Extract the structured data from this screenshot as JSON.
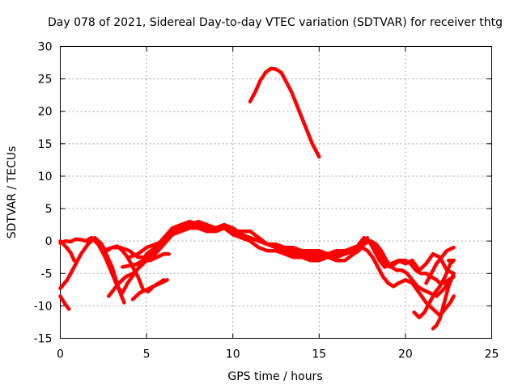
{
  "chart_data": {
    "type": "line",
    "title": "Day 078 of 2021, Sidereal Day-to-day VTEC variation (SDTVAR) for receiver thtg",
    "xlabel": "GPS time / hours",
    "ylabel": "SDTVAR / TECUs",
    "xlim": [
      0,
      25
    ],
    "ylim": [
      -15,
      30
    ],
    "xticks": [
      0,
      5,
      10,
      15,
      20,
      25
    ],
    "yticks": [
      -15,
      -10,
      -5,
      0,
      5,
      10,
      15,
      20,
      25,
      30
    ],
    "grid": true,
    "series_color": "#ff0000",
    "series": [
      {
        "name": "trace-1",
        "x": [
          0.0,
          0.3,
          0.5
        ],
        "y": [
          -8.5,
          -9.8,
          -10.5
        ]
      },
      {
        "name": "trace-2",
        "x": [
          0.0,
          0.4,
          0.8,
          1.2,
          1.6,
          2.0,
          2.4,
          3.0,
          3.4,
          3.7
        ],
        "y": [
          -7.3,
          -6.0,
          -4.0,
          -2.0,
          -0.5,
          0.5,
          -0.5,
          -4.0,
          -7.5,
          -9.5
        ]
      },
      {
        "name": "trace-3",
        "x": [
          0.0,
          0.3,
          0.6,
          0.9,
          1.2,
          1.5,
          1.8,
          2.1,
          2.4,
          2.7,
          3.0,
          3.3,
          3.6,
          3.9,
          4.2,
          4.5,
          4.8,
          5.1,
          5.4,
          5.7,
          6.0
        ],
        "y": [
          -0.3,
          0.0,
          -0.1,
          0.3,
          0.2,
          0.0,
          0.5,
          0.1,
          -0.8,
          -1.5,
          -1.0,
          -0.8,
          -1.5,
          -2.5,
          -4.0,
          -5.5,
          -7.5,
          -7.8,
          -7.0,
          -6.5,
          -6.0
        ]
      },
      {
        "name": "trace-4",
        "x": [
          0.0,
          0.3,
          0.6,
          0.8
        ],
        "y": [
          0.0,
          -0.8,
          -1.8,
          -3.0
        ]
      },
      {
        "name": "trace-5",
        "x": [
          1.5,
          1.8,
          2.2,
          2.6,
          3.0,
          3.3,
          3.6,
          3.9,
          4.3,
          4.7,
          5.0,
          5.5,
          6.0,
          6.5,
          7.0,
          7.5,
          8.0,
          8.5,
          9.0,
          9.5,
          10.0,
          10.5,
          11.0,
          11.5,
          12.0,
          12.5,
          13.0,
          13.5,
          14.0,
          14.5,
          15.0,
          15.5,
          16.0,
          16.5,
          17.0,
          17.3,
          17.6,
          17.9,
          18.2,
          18.5,
          18.8,
          19.2,
          19.6,
          20.0,
          20.4,
          20.8,
          21.2,
          21.6,
          22.0,
          22.4,
          22.8
        ],
        "y": [
          0.0,
          0.5,
          -0.5,
          -2.5,
          -5.0,
          -7.0,
          -8.0,
          -6.5,
          -5.0,
          -3.5,
          -2.0,
          -1.0,
          0.5,
          1.5,
          2.5,
          3.0,
          2.5,
          2.0,
          1.5,
          2.0,
          1.0,
          0.5,
          0.0,
          -1.0,
          -1.5,
          -1.5,
          -2.0,
          -2.5,
          -2.5,
          -3.0,
          -3.0,
          -2.5,
          -3.0,
          -3.0,
          -2.0,
          -0.5,
          0.5,
          0.0,
          -1.5,
          -3.0,
          -4.0,
          -3.5,
          -3.0,
          -3.5,
          -3.0,
          -4.5,
          -3.5,
          -2.0,
          -2.5,
          -4.5,
          -5.0
        ]
      },
      {
        "name": "trace-6",
        "x": [
          2.5,
          3.0,
          3.5,
          4.0,
          4.5,
          5.0,
          5.5,
          6.0,
          6.5,
          7.0,
          7.5,
          8.0,
          8.5,
          9.0,
          9.5,
          10.0,
          10.5,
          11.0,
          11.5,
          12.0,
          12.5,
          13.0,
          13.5,
          14.0,
          14.5,
          15.0,
          15.5,
          16.0,
          16.5,
          17.0,
          17.5,
          17.8
        ],
        "y": [
          -1.5,
          -1.0,
          -1.0,
          -1.5,
          -2.5,
          -2.5,
          -1.5,
          0.5,
          2.0,
          2.5,
          2.8,
          2.0,
          1.5,
          2.0,
          2.5,
          1.5,
          1.0,
          0.5,
          0.0,
          -0.5,
          -1.0,
          -1.0,
          -1.5,
          -1.5,
          -1.5,
          -1.5,
          -2.0,
          -2.5,
          -2.0,
          -1.5,
          -0.5,
          0.5
        ]
      },
      {
        "name": "trace-7",
        "x": [
          2.8,
          3.1,
          3.4,
          3.8,
          4.2,
          4.6,
          5.0,
          5.5,
          6.0,
          6.5,
          7.0,
          7.5,
          8.0,
          8.5,
          9.0,
          9.5,
          10.0,
          10.5,
          11.0,
          11.5,
          12.0,
          12.5,
          13.0,
          13.5,
          14.0,
          14.5,
          15.0,
          15.5,
          16.0,
          16.5,
          17.0,
          17.5,
          18.0,
          18.3,
          18.6,
          18.9,
          19.2,
          19.5,
          19.8,
          20.1,
          20.4,
          20.7,
          21.0,
          21.4,
          21.8,
          22.2,
          22.6
        ],
        "y": [
          -8.5,
          -7.5,
          -6.5,
          -5.5,
          -5.0,
          -4.0,
          -3.0,
          -2.0,
          -0.5,
          1.0,
          2.0,
          2.5,
          3.0,
          2.5,
          2.0,
          2.5,
          2.0,
          1.0,
          0.5,
          0.0,
          -0.5,
          -0.5,
          -1.0,
          -1.0,
          -1.5,
          -2.0,
          -2.0,
          -2.0,
          -1.5,
          -1.5,
          -1.0,
          -0.5,
          0.0,
          -0.5,
          -1.5,
          -3.0,
          -4.0,
          -4.5,
          -4.5,
          -5.0,
          -6.0,
          -7.0,
          -7.5,
          -8.0,
          -8.5,
          -7.5,
          -6.0
        ]
      },
      {
        "name": "trace-8",
        "x": [
          4.0,
          4.5,
          5.0,
          5.5,
          6.0,
          6.5,
          7.0,
          7.5,
          8.0,
          8.5,
          9.0,
          9.5,
          10.0,
          10.5,
          11.0,
          11.5,
          12.0,
          12.5,
          13.0,
          13.5,
          14.0,
          14.5,
          15.0,
          15.5,
          16.0,
          16.5,
          17.0,
          17.5,
          17.8,
          18.1,
          18.4,
          18.7,
          19.0,
          19.3,
          19.6,
          20.0,
          20.4,
          20.8,
          21.2,
          21.6,
          22.0,
          22.3,
          22.6,
          22.8
        ],
        "y": [
          -2.5,
          -2.0,
          -1.0,
          -0.5,
          0.0,
          1.0,
          1.5,
          2.0,
          2.0,
          1.5,
          1.5,
          2.0,
          1.5,
          1.5,
          1.5,
          0.5,
          -0.5,
          -1.0,
          -1.5,
          -2.0,
          -2.0,
          -2.5,
          -2.5,
          -2.5,
          -2.0,
          -2.0,
          -1.5,
          -1.0,
          -1.5,
          -2.5,
          -4.0,
          -5.5,
          -6.5,
          -7.0,
          -6.5,
          -6.0,
          -6.5,
          -8.0,
          -9.5,
          -10.5,
          -11.5,
          -10.5,
          -9.5,
          -8.5
        ]
      },
      {
        "name": "trace-9",
        "x": [
          4.2,
          4.6,
          5.0,
          5.4,
          5.8,
          6.2
        ],
        "y": [
          -9.0,
          -8.0,
          -7.5,
          -7.0,
          -6.5,
          -6.0
        ]
      },
      {
        "name": "trace-10",
        "x": [
          3.6,
          4.0,
          4.4,
          4.8,
          5.2,
          5.6,
          6.0,
          6.3
        ],
        "y": [
          -4.0,
          -3.8,
          -3.6,
          -3.0,
          -3.0,
          -2.5,
          -2.0,
          -2.0
        ]
      },
      {
        "name": "trace-11",
        "x": [
          17.0,
          17.3,
          17.6,
          17.9,
          18.2,
          18.5,
          18.8,
          19.1,
          19.4,
          19.7,
          20.0,
          20.3,
          20.6,
          20.9,
          21.2,
          21.5,
          21.8,
          22.0,
          22.2,
          22.5,
          22.8
        ],
        "y": [
          -2.0,
          -1.5,
          -0.5,
          0.0,
          -0.5,
          -2.0,
          -3.5,
          -4.0,
          -3.5,
          -3.0,
          -3.0,
          -3.5,
          -4.5,
          -5.0,
          -5.0,
          -5.5,
          -6.0,
          -6.5,
          -6.5,
          -6.0,
          -5.5
        ]
      },
      {
        "name": "trace-12",
        "x": [
          20.5,
          20.8,
          21.1,
          21.4,
          21.7,
          22.0,
          22.3,
          22.6,
          22.8
        ],
        "y": [
          -11.0,
          -11.8,
          -11.0,
          -9.5,
          -8.0,
          -7.0,
          -5.5,
          -3.5,
          -3.0
        ]
      },
      {
        "name": "trace-13",
        "x": [
          21.2,
          21.5,
          21.8,
          22.1,
          22.4,
          22.8
        ],
        "y": [
          -6.5,
          -5.0,
          -3.5,
          -2.5,
          -1.5,
          -1.0
        ]
      },
      {
        "name": "trace-14",
        "x": [
          21.6,
          21.8,
          22.0,
          22.2,
          22.5,
          22.8
        ],
        "y": [
          -13.5,
          -13.0,
          -12.0,
          -10.0,
          -7.0,
          -5.0
        ]
      },
      {
        "name": "trace-15",
        "x": [
          22.5,
          22.8
        ],
        "y": [
          -3.0,
          -3.0
        ]
      },
      {
        "name": "trace-16",
        "x": [
          11.0,
          11.3,
          11.6,
          11.9,
          12.2,
          12.5,
          12.8,
          13.1,
          13.4,
          13.7,
          14.0,
          14.3,
          14.6,
          14.9,
          15.0
        ],
        "y": [
          21.5,
          23.0,
          24.8,
          26.0,
          26.6,
          26.5,
          26.0,
          24.5,
          23.0,
          21.0,
          19.0,
          17.0,
          15.0,
          13.5,
          13.0
        ]
      }
    ]
  }
}
